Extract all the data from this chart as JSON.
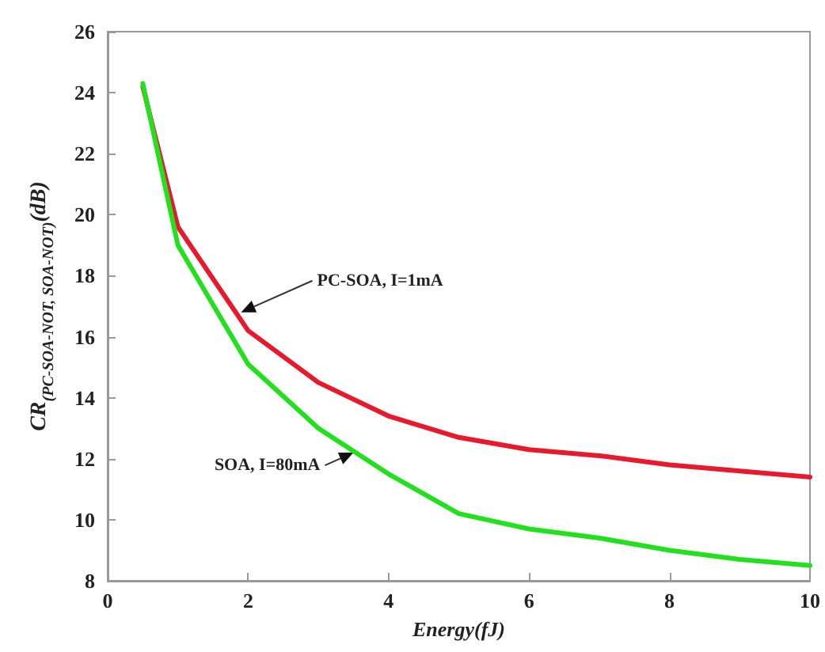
{
  "chart_data": {
    "type": "line",
    "xlabel": "Energy(fJ)",
    "ylabel": "CR$_{(PC-SOA-NOT, SOA-NOT)}$(dB)",
    "x": [
      0.5,
      1,
      2,
      3,
      4,
      5,
      6,
      7,
      8,
      9,
      10
    ],
    "series": [
      {
        "color": "#e8192c",
        "values": [
          24.2,
          19.6,
          16.2,
          14.5,
          13.4,
          12.7,
          12.3,
          12.1,
          11.8,
          11.6,
          11.4
        ]
      },
      {
        "color": "#22e01e",
        "values": [
          24.3,
          19.0,
          15.1,
          13.0,
          11.5,
          10.2,
          9.7,
          9.4,
          9.0,
          8.7,
          8.5
        ]
      }
    ],
    "annotations": [
      {
        "text": "PC-SOA, I=1mA",
        "x": 1.9,
        "y": 16.8
      },
      {
        "text": "SOA, I=80mA",
        "x": 3.5,
        "y": 12.2
      }
    ],
    "xlim": [
      0,
      10
    ],
    "xticks": [
      0,
      2,
      4,
      6,
      8,
      10
    ],
    "ylim": [
      8,
      26
    ],
    "yticks": [
      8,
      10,
      12,
      14,
      16,
      18,
      20,
      22,
      24,
      26
    ],
    "grid": false,
    "marker": "none",
    "line_style": "solid"
  }
}
